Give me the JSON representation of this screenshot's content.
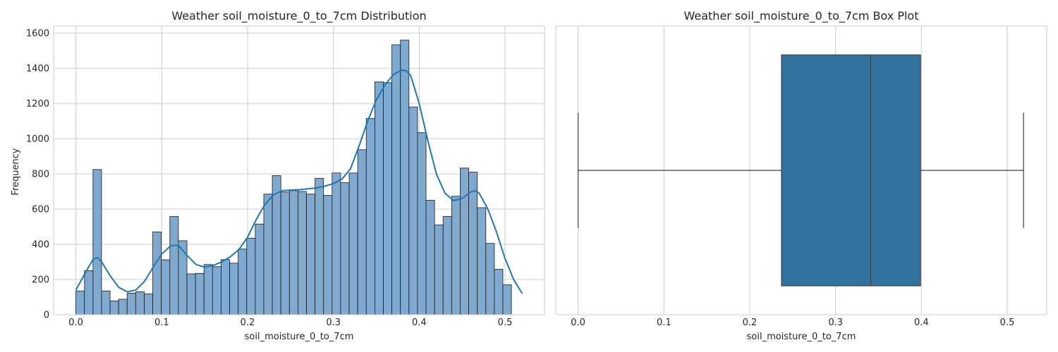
{
  "chart_data": [
    {
      "type": "bar",
      "title": "Weather soil_moisture_0_to_7cm Distribution",
      "xlabel": "soil_moisture_0_to_7cm",
      "ylabel": "Frequency",
      "xlim": [
        -0.026,
        0.546
      ],
      "ylim": [
        0,
        1640
      ],
      "xticks": [
        0.0,
        0.1,
        0.2,
        0.3,
        0.4,
        0.5
      ],
      "xtick_labels": [
        "0.0",
        "0.1",
        "0.2",
        "0.3",
        "0.4",
        "0.5"
      ],
      "yticks": [
        0,
        200,
        400,
        600,
        800,
        1000,
        1200,
        1400,
        1600
      ],
      "ytick_labels": [
        "0",
        "200",
        "400",
        "600",
        "800",
        "1000",
        "1200",
        "1400",
        "1600"
      ],
      "grid": true,
      "bar_color": "#7fa9cf",
      "kde_color": "#1f77b4",
      "bins": {
        "start": 0.0,
        "width": 0.00995,
        "counts": [
          135,
          250,
          825,
          135,
          78,
          88,
          122,
          130,
          118,
          470,
          312,
          558,
          420,
          232,
          235,
          285,
          273,
          313,
          293,
          373,
          435,
          515,
          685,
          790,
          697,
          705,
          700,
          685,
          775,
          678,
          805,
          750,
          805,
          937,
          1115,
          1323,
          1318,
          1533,
          1560,
          1180,
          1035,
          650,
          510,
          558,
          673,
          833,
          810,
          608,
          405,
          258,
          170
        ]
      },
      "kde": {
        "x": [
          0.0,
          0.01,
          0.02,
          0.025,
          0.03,
          0.04,
          0.05,
          0.06,
          0.07,
          0.08,
          0.09,
          0.1,
          0.11,
          0.115,
          0.12,
          0.13,
          0.14,
          0.15,
          0.16,
          0.17,
          0.18,
          0.19,
          0.2,
          0.21,
          0.22,
          0.23,
          0.24,
          0.25,
          0.26,
          0.27,
          0.28,
          0.29,
          0.3,
          0.31,
          0.32,
          0.33,
          0.34,
          0.35,
          0.36,
          0.37,
          0.38,
          0.385,
          0.39,
          0.4,
          0.41,
          0.42,
          0.43,
          0.44,
          0.45,
          0.46,
          0.465,
          0.47,
          0.48,
          0.49,
          0.5,
          0.51,
          0.52
        ],
        "y": [
          140,
          230,
          315,
          325,
          300,
          220,
          155,
          130,
          140,
          190,
          270,
          345,
          390,
          395,
          390,
          335,
          285,
          270,
          280,
          300,
          330,
          370,
          440,
          540,
          625,
          680,
          705,
          708,
          710,
          715,
          720,
          730,
          745,
          770,
          830,
          960,
          1100,
          1220,
          1305,
          1365,
          1390,
          1385,
          1360,
          1200,
          990,
          800,
          690,
          648,
          660,
          698,
          705,
          690,
          600,
          470,
          320,
          200,
          120
        ]
      }
    },
    {
      "type": "box",
      "title": "Weather soil_moisture_0_to_7cm Box Plot",
      "xlabel": "soil_moisture_0_to_7cm",
      "xlim": [
        -0.026,
        0.546
      ],
      "xticks": [
        0.0,
        0.1,
        0.2,
        0.3,
        0.4,
        0.5
      ],
      "xtick_labels": [
        "0.0",
        "0.1",
        "0.2",
        "0.3",
        "0.4",
        "0.5"
      ],
      "grid": true,
      "box_color": "#3274a1",
      "whisker_low": 0.0,
      "q1": 0.237,
      "median": 0.341,
      "q3": 0.399,
      "whisker_high": 0.519
    }
  ]
}
